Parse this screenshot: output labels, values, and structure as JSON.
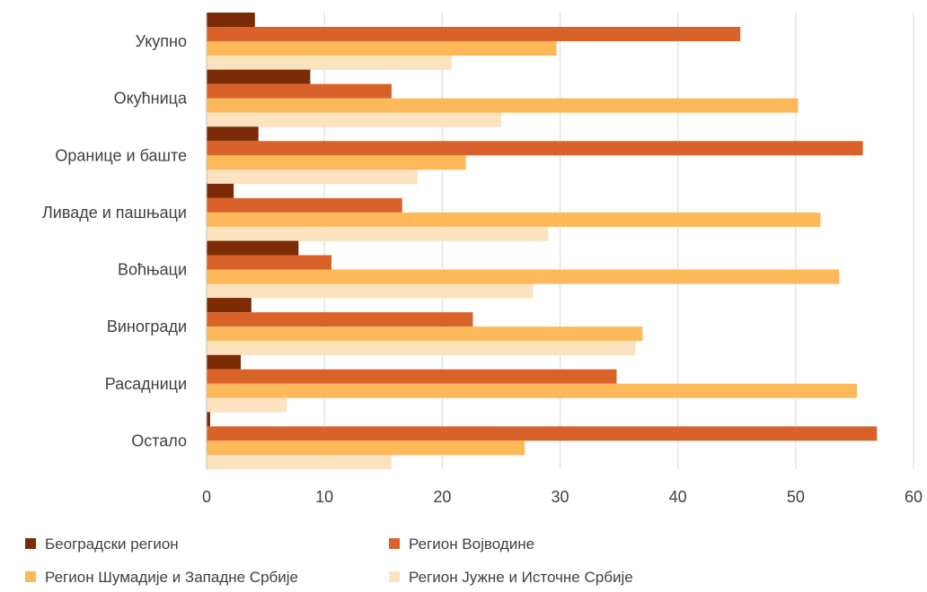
{
  "chart_data": {
    "type": "bar",
    "orientation": "horizontal",
    "title": "",
    "xlabel": "",
    "ylabel": "",
    "xlim": [
      0,
      60
    ],
    "x_ticks": [
      0,
      10,
      20,
      30,
      40,
      50,
      60
    ],
    "grid": "vertical",
    "legend_position": "bottom",
    "categories": [
      "Укупно",
      "Окућница",
      "Оранице и баште",
      "Ливаде и пашњаци",
      "Воћњаци",
      "Виногради",
      "Расадници",
      "Остало"
    ],
    "series": [
      {
        "name": "Београдски регион",
        "color": "#7b2c06",
        "values": [
          4.1,
          8.8,
          4.4,
          2.3,
          7.8,
          3.8,
          2.9,
          0.3
        ]
      },
      {
        "name": "Регион Војводине",
        "color": "#d9622b",
        "values": [
          45.3,
          15.7,
          55.7,
          16.6,
          10.6,
          22.6,
          34.8,
          56.9
        ]
      },
      {
        "name": "Регион Шумадије и Западне Србије",
        "color": "#fdb859",
        "values": [
          29.7,
          50.2,
          22.0,
          52.1,
          53.7,
          37.0,
          55.2,
          27.0
        ]
      },
      {
        "name": "Регион Јужне и Источне Србије",
        "color": "#fde2c0",
        "values": [
          20.8,
          25.0,
          17.9,
          29.0,
          27.7,
          36.4,
          6.8,
          15.7
        ]
      }
    ]
  }
}
